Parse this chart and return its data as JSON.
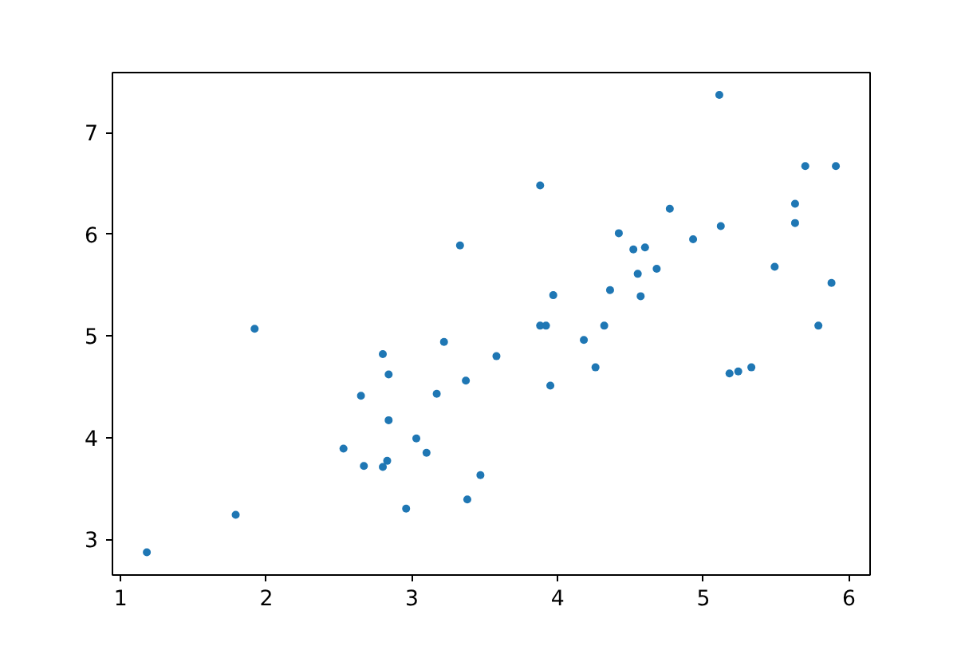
{
  "chart_data": {
    "type": "scatter",
    "marker": "circle",
    "grid": false,
    "xlim": [
      0.944,
      6.145
    ],
    "ylim": [
      2.647,
      7.59
    ],
    "xticks": [
      1,
      2,
      3,
      4,
      5,
      6
    ],
    "yticks": [
      3,
      4,
      5,
      6,
      7
    ],
    "series": [
      {
        "color": "#1f77b4",
        "x": [
          1.18,
          1.79,
          1.92,
          2.53,
          2.65,
          2.67,
          2.8,
          2.83,
          2.8,
          2.84,
          2.84,
          2.96,
          3.03,
          3.1,
          3.17,
          3.22,
          3.33,
          3.37,
          3.38,
          3.47,
          3.58,
          3.88,
          3.97,
          3.88,
          3.92,
          3.95,
          4.18,
          4.26,
          4.32,
          4.36,
          4.42,
          4.52,
          4.55,
          4.57,
          4.6,
          4.68,
          4.77,
          4.93,
          5.11,
          5.12,
          5.18,
          5.24,
          5.33,
          5.49,
          5.63,
          5.63,
          5.7,
          5.79,
          5.88,
          5.91
        ],
        "values": [
          2.87,
          3.24,
          5.07,
          3.89,
          4.41,
          3.72,
          3.71,
          3.77,
          4.82,
          4.62,
          4.17,
          3.3,
          3.99,
          3.85,
          4.43,
          4.94,
          5.89,
          4.56,
          3.39,
          3.63,
          4.8,
          6.48,
          5.4,
          5.1,
          5.1,
          4.51,
          4.96,
          4.69,
          5.1,
          5.45,
          6.01,
          5.85,
          5.61,
          5.39,
          5.87,
          5.66,
          6.25,
          5.95,
          7.37,
          6.08,
          4.63,
          4.65,
          4.69,
          5.68,
          6.3,
          6.11,
          6.67,
          5.1,
          5.52,
          6.67
        ]
      }
    ]
  }
}
